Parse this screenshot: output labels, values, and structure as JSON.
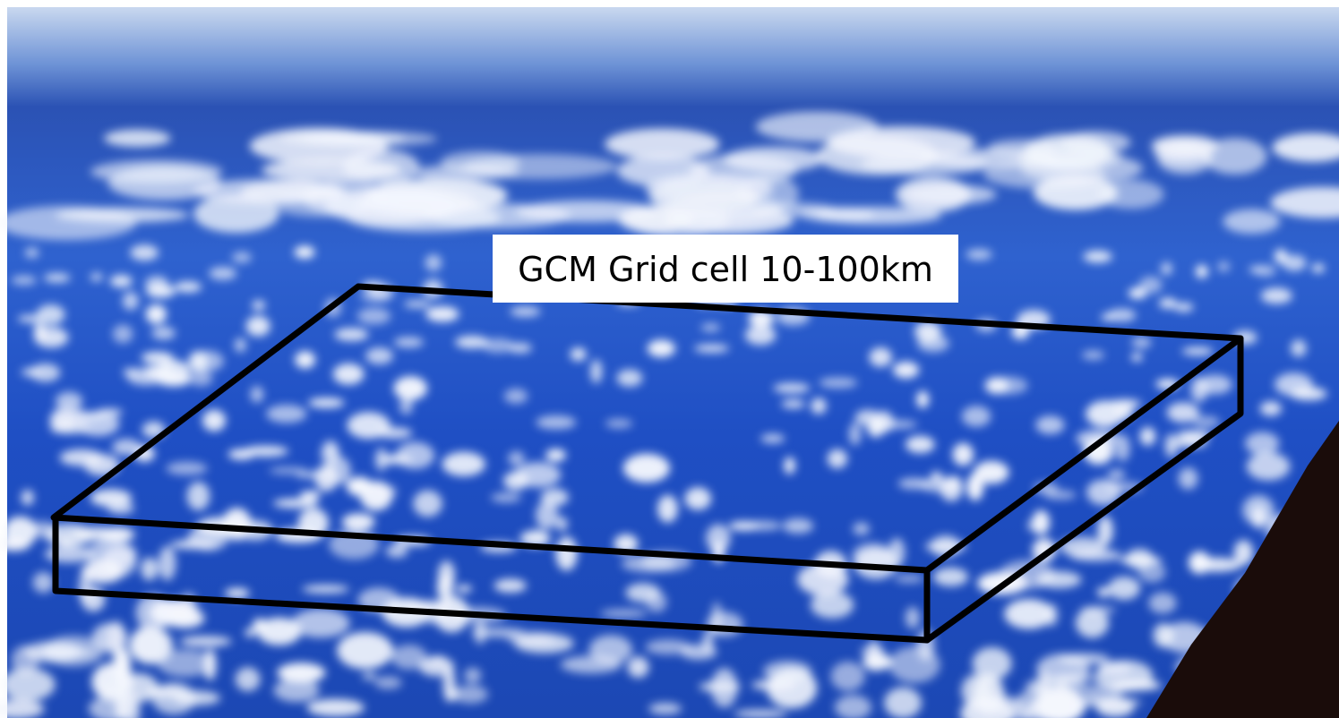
{
  "label": "GCM Grid cell 10-100km"
}
